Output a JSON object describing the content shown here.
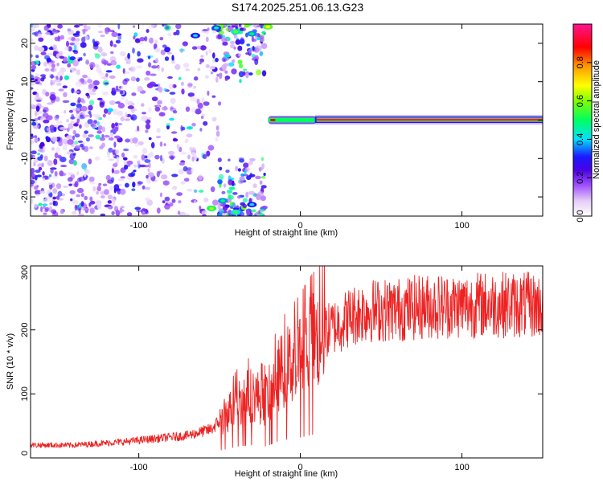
{
  "title": "S174.2025.251.06.13.G23",
  "colors": {
    "snr_line": "#ee2222",
    "colormap": [
      "#ffffff",
      "#e4ccf6",
      "#a050ff",
      "#4b00e6",
      "#1a1aff",
      "#00e0ff",
      "#00ff60",
      "#80ff00",
      "#ffff00",
      "#ff9900",
      "#ff0000",
      "#ff0066",
      "#ff1493"
    ]
  },
  "chart_data": [
    {
      "type": "heatmap",
      "xlabel": "Height of straight line (km)",
      "ylabel": "Frequency (Hz)",
      "xlim": [
        -167,
        150
      ],
      "ylim": [
        -25,
        25
      ],
      "x_ticks": [
        -100,
        0,
        100
      ],
      "y_ticks": [
        -20,
        -10,
        0,
        10,
        20
      ],
      "colorbar": {
        "label": "Normalized spectral amplitude",
        "range": [
          0,
          1
        ],
        "ticks": [
          0.0,
          0.2,
          0.4,
          0.6,
          0.8
        ]
      },
      "features": {
        "carrier_line": {
          "x_start": 10,
          "x_end": 150,
          "frequency": 0.1,
          "amplitude": 0.95
        },
        "carrier_onset": {
          "x_start": -20,
          "x_end": 10,
          "frequency": 0,
          "amplitude": 0.5
        },
        "noise_region": {
          "x_start": -167,
          "x_end": -50,
          "frequency_range": [
            -25,
            25
          ],
          "amplitude_range": [
            0.05,
            0.35
          ]
        },
        "noise_tail": {
          "x_start": -50,
          "x_end": -22,
          "frequency_bands": [
            [
              -25,
              -10
            ],
            [
              10,
              25
            ]
          ],
          "amplitude_range": [
            0.1,
            0.6
          ]
        }
      }
    },
    {
      "type": "line",
      "xlabel": "Height of straight line (km)",
      "ylabel": "SNR (10 * v/v)",
      "xlim": [
        -167,
        150
      ],
      "ylim": [
        0,
        300
      ],
      "x_ticks": [
        -100,
        0,
        100
      ],
      "y_ticks": [
        0,
        100,
        200,
        300
      ],
      "series": [
        {
          "x": [
            -167,
            -140,
            -110,
            -90,
            -70,
            -55,
            -45,
            -38,
            -30,
            -22,
            -18,
            -15,
            -10,
            -5,
            0,
            5,
            10,
            15,
            20,
            25,
            30,
            40,
            60,
            80,
            100,
            120,
            150
          ],
          "values": [
            20,
            20,
            25,
            30,
            35,
            45,
            70,
            90,
            100,
            90,
            105,
            125,
            140,
            150,
            160,
            175,
            185,
            195,
            205,
            210,
            220,
            230,
            232,
            237,
            238,
            240,
            238
          ]
        }
      ]
    }
  ]
}
